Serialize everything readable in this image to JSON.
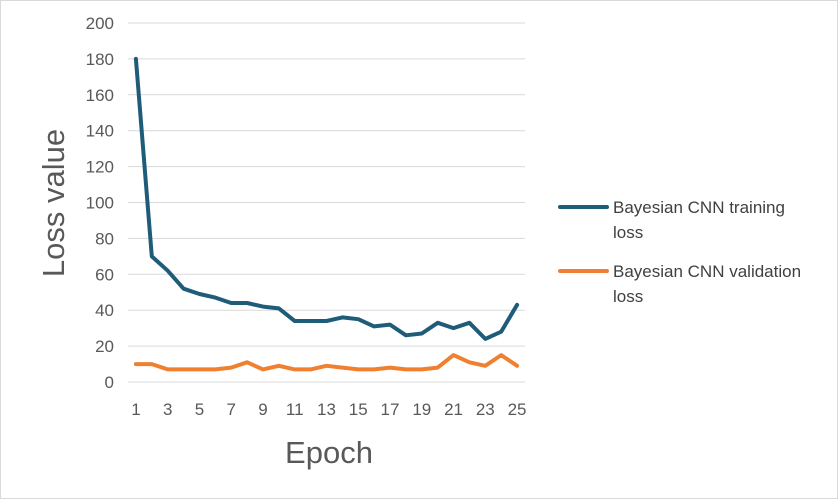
{
  "chart_data": {
    "type": "line",
    "xlabel": "Epoch",
    "ylabel": "Loss value",
    "ylim": [
      0,
      200
    ],
    "y_ticks": [
      "0",
      "20",
      "40",
      "60",
      "80",
      "100",
      "120",
      "140",
      "160",
      "180",
      "200"
    ],
    "x_ticks": [
      "1",
      "3",
      "5",
      "7",
      "9",
      "11",
      "13",
      "15",
      "17",
      "19",
      "21",
      "23",
      "25"
    ],
    "x": [
      1,
      2,
      3,
      4,
      5,
      6,
      7,
      8,
      9,
      10,
      11,
      12,
      13,
      14,
      15,
      16,
      17,
      18,
      19,
      20,
      21,
      22,
      23,
      24,
      25
    ],
    "grid": "horizontal",
    "legend_position": "right",
    "series": [
      {
        "name": "Bayesian CNN training loss",
        "legend_lines": [
          "Bayesian CNN training",
          "loss"
        ],
        "color": "#1f5c7a",
        "values": [
          180,
          70,
          62,
          52,
          49,
          47,
          44,
          44,
          42,
          41,
          34,
          34,
          34,
          36,
          35,
          31,
          32,
          26,
          27,
          33,
          30,
          33,
          24,
          28,
          43
        ]
      },
      {
        "name": "Bayesian CNN validation loss",
        "legend_lines": [
          "Bayesian CNN validation",
          "loss"
        ],
        "color": "#f08030",
        "values": [
          10,
          10,
          7,
          7,
          7,
          7,
          8,
          11,
          7,
          9,
          7,
          7,
          9,
          8,
          7,
          7,
          8,
          7,
          7,
          8,
          15,
          11,
          9,
          15,
          9
        ]
      }
    ]
  }
}
